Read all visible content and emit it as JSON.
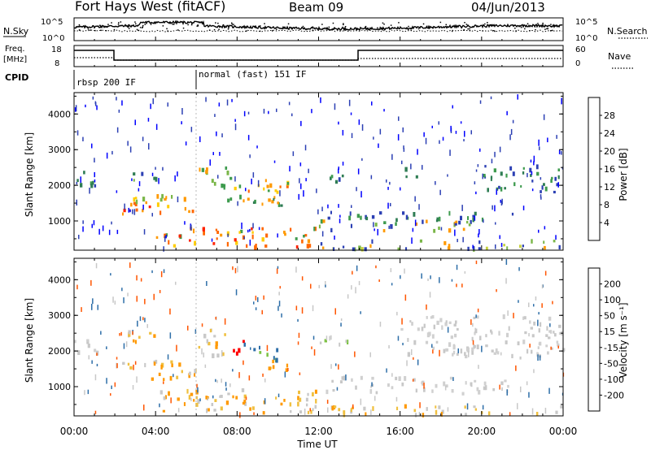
{
  "header": {
    "station": "Fort Hays West (fitACF)",
    "beam": "Beam 09",
    "date": "04/Jun/2013"
  },
  "panels": {
    "nsky": {
      "left_label": "N.Sky",
      "right_label": "N.Search",
      "left_ticks": [
        "10^5",
        "10^0"
      ],
      "right_ticks": [
        "10^5",
        "10^0"
      ]
    },
    "freq": {
      "left_label_1": "Freq.",
      "left_label_2": "[MHz]",
      "right_label": "Nave",
      "left_ticks": [
        "18",
        "8"
      ],
      "right_ticks": [
        "60",
        "0"
      ]
    },
    "cpid": {
      "label": "CPID",
      "modes": [
        "rbsp 200 IF",
        "normal (fast) 151 IF"
      ]
    }
  },
  "chart_data": [
    {
      "type": "heatmap",
      "title": "",
      "xlabel": "Time UT",
      "ylabel": "Slant Range [km]",
      "x_ticks": [
        "00:00",
        "04:00",
        "08:00",
        "12:00",
        "16:00",
        "20:00",
        "00:00"
      ],
      "y_ticks": [
        1000,
        2000,
        3000,
        4000
      ],
      "xlim": [
        0,
        24
      ],
      "ylim": [
        180,
        4600
      ],
      "colorbar": {
        "label": "Power [dB]",
        "ticks": [
          4,
          8,
          12,
          16,
          20,
          24,
          28
        ],
        "colors": [
          "#0000ff",
          "#2c40b4",
          "#2f7d54",
          "#3e9b4e",
          "#7ab648",
          "#c6d23c",
          "#ffcc00",
          "#ff9900",
          "#ff6600",
          "#ff2200"
        ]
      }
    },
    {
      "type": "heatmap",
      "title": "",
      "xlabel": "Time UT",
      "ylabel": "Slant Range [km]",
      "x_ticks": [
        "00:00",
        "04:00",
        "08:00",
        "12:00",
        "16:00",
        "20:00",
        "00:00"
      ],
      "y_ticks": [
        1000,
        2000,
        3000,
        4000
      ],
      "xlim": [
        0,
        24
      ],
      "ylim": [
        180,
        4600
      ],
      "colorbar": {
        "label": "Velocity [m s⁻¹]",
        "ticks": [
          200,
          100,
          50,
          15,
          -15,
          -50,
          -100,
          -200
        ],
        "colors": [
          "#1a3cb8",
          "#2d6ea8",
          "#2e8b57",
          "#7cc242",
          "#c8c8c8",
          "#f0c040",
          "#ff9900",
          "#ff5500",
          "#ff0000"
        ]
      }
    }
  ],
  "scatter": {
    "power_bands": [
      {
        "t0": 0.0,
        "t1": 1.2,
        "r0": 1900,
        "r1": 2400,
        "colors": [
          "#2c40b4",
          "#3e9b4e",
          "#2f7d54"
        ]
      },
      {
        "t0": 1.8,
        "t1": 4.0,
        "r0": 1150,
        "r1": 1500,
        "colors": [
          "#ff2200",
          "#ff6600",
          "#ff9900"
        ]
      },
      {
        "t0": 2.0,
        "t1": 6.2,
        "r0": 1400,
        "r1": 1700,
        "colors": [
          "#ff9900",
          "#ffcc00",
          "#7ab648"
        ]
      },
      {
        "t0": 4.0,
        "t1": 6.0,
        "r0": 1200,
        "r1": 1400,
        "colors": [
          "#ff6600",
          "#ff9900",
          "#3e9b4e"
        ]
      },
      {
        "t0": 2.5,
        "t1": 4.0,
        "r0": 2100,
        "r1": 2400,
        "colors": [
          "#2f7d54",
          "#2c40b4",
          "#7ab648"
        ]
      },
      {
        "t0": 6.0,
        "t1": 7.5,
        "r0": 1800,
        "r1": 2500,
        "colors": [
          "#3e9b4e",
          "#7ab648",
          "#ff9900"
        ]
      },
      {
        "t0": 7.5,
        "t1": 10.5,
        "r0": 1500,
        "r1": 2200,
        "colors": [
          "#ff9900",
          "#ff6600",
          "#ffcc00",
          "#3e9b4e"
        ]
      },
      {
        "t0": 8.0,
        "t1": 10.5,
        "r0": 1400,
        "r1": 1700,
        "colors": [
          "#3e9b4e",
          "#2f7d54",
          "#ff9900"
        ]
      },
      {
        "t0": 12.0,
        "t1": 13.5,
        "r0": 2000,
        "r1": 2300,
        "colors": [
          "#2c40b4",
          "#2f7d54",
          "#3e9b4e"
        ]
      },
      {
        "t0": 15.8,
        "t1": 16.8,
        "r0": 2200,
        "r1": 2500,
        "colors": [
          "#2c40b4",
          "#2f7d54"
        ]
      },
      {
        "t0": 12.2,
        "t1": 21.5,
        "r0": 1000,
        "r1": 1250,
        "colors": [
          "#2c40b4",
          "#2f7d54",
          "#3e9b4e"
        ]
      },
      {
        "t0": 12.0,
        "t1": 19.5,
        "r0": 700,
        "r1": 1000,
        "colors": [
          "#3e9b4e",
          "#7ab648",
          "#ff9900",
          "#2c40b4"
        ]
      },
      {
        "t0": 20.0,
        "t1": 24.0,
        "r0": 1800,
        "r1": 2600,
        "colors": [
          "#2c40b4",
          "#2f7d54",
          "#3e9b4e"
        ]
      },
      {
        "t0": 4.0,
        "t1": 12.0,
        "r0": 250,
        "r1": 800,
        "colors": [
          "#ff9900",
          "#ffcc00",
          "#ff6600",
          "#3e9b4e",
          "#ff2200"
        ]
      },
      {
        "t0": 12.0,
        "t1": 24.0,
        "r0": 200,
        "r1": 450,
        "colors": [
          "#c6d23c",
          "#ff9900",
          "#7ab648",
          "#2c40b4"
        ]
      },
      {
        "t0": 0.0,
        "t1": 24.0,
        "r0": 200,
        "r1": 4500,
        "colors": [
          "#2c40b4",
          "#0000ff"
        ],
        "sparse": true
      }
    ],
    "velocity_bands": [
      {
        "t0": 0.0,
        "t1": 1.2,
        "r0": 1900,
        "r1": 2400,
        "colors": [
          "#c8c8c8",
          "#d0d0d0"
        ]
      },
      {
        "t0": 1.8,
        "t1": 6.0,
        "r0": 1200,
        "r1": 1700,
        "colors": [
          "#c8c8c8",
          "#f0c040",
          "#ff9900"
        ]
      },
      {
        "t0": 2.5,
        "t1": 4.0,
        "r0": 2100,
        "r1": 2600,
        "colors": [
          "#ff9900",
          "#f0c040",
          "#c8c8c8"
        ]
      },
      {
        "t0": 6.0,
        "t1": 7.5,
        "r0": 1800,
        "r1": 2600,
        "colors": [
          "#ff9900",
          "#f0c040",
          "#c8c8c8"
        ]
      },
      {
        "t0": 7.5,
        "t1": 8.3,
        "r0": 1900,
        "r1": 2300,
        "colors": [
          "#ff0000",
          "#ff5500"
        ]
      },
      {
        "t0": 8.3,
        "t1": 10.0,
        "r0": 1700,
        "r1": 2200,
        "colors": [
          "#2e8b57",
          "#7cc242",
          "#2d6ea8"
        ]
      },
      {
        "t0": 9.5,
        "t1": 10.8,
        "r0": 1400,
        "r1": 1800,
        "colors": [
          "#ff9900",
          "#f0c040"
        ]
      },
      {
        "t0": 12.0,
        "t1": 13.5,
        "r0": 2000,
        "r1": 2300,
        "colors": [
          "#7cc242",
          "#c8c8c8"
        ]
      },
      {
        "t0": 12.2,
        "t1": 21.5,
        "r0": 800,
        "r1": 1250,
        "colors": [
          "#c8c8c8",
          "#d0d0d0"
        ]
      },
      {
        "t0": 16.0,
        "t1": 24.0,
        "r0": 1800,
        "r1": 3000,
        "colors": [
          "#c8c8c8",
          "#d0d0d0"
        ]
      },
      {
        "t0": 4.0,
        "t1": 12.0,
        "r0": 250,
        "r1": 900,
        "colors": [
          "#ff9900",
          "#f0c040",
          "#c8c8c8"
        ]
      },
      {
        "t0": 12.0,
        "t1": 24.0,
        "r0": 200,
        "r1": 450,
        "colors": [
          "#f0c040",
          "#ff9900",
          "#c8c8c8"
        ]
      },
      {
        "t0": 0.0,
        "t1": 24.0,
        "r0": 200,
        "r1": 4500,
        "colors": [
          "#c8c8c8",
          "#ff5500",
          "#2d6ea8"
        ],
        "sparse": true
      }
    ]
  }
}
